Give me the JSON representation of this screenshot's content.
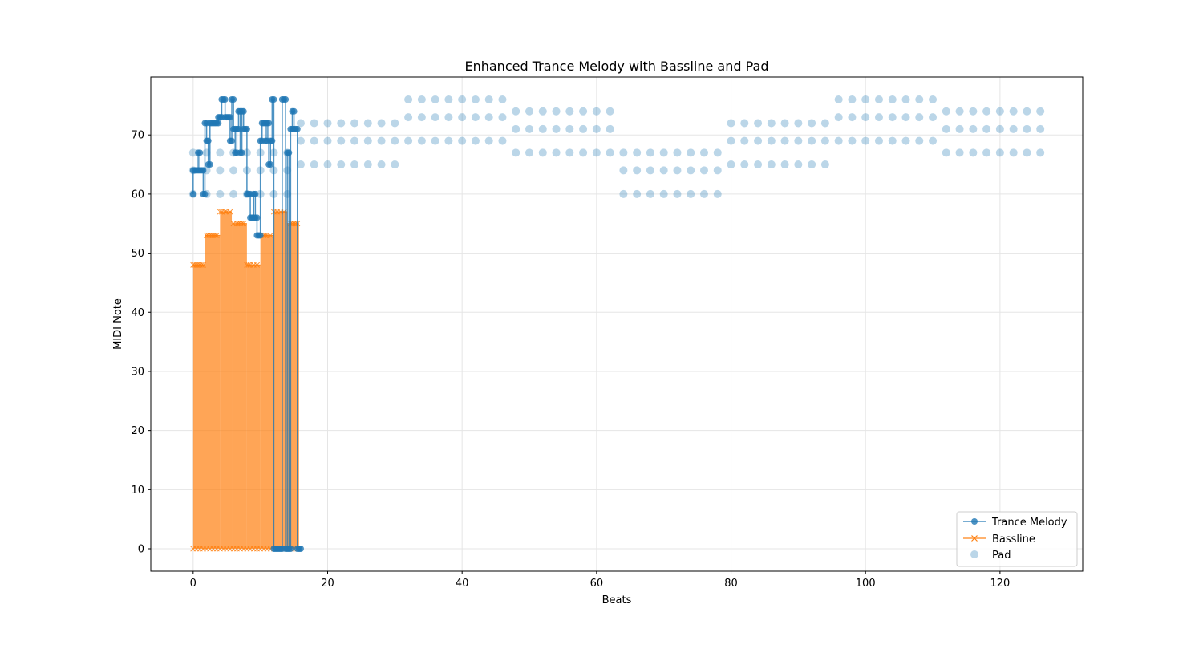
{
  "chart_data": {
    "type": "line",
    "title": "Enhanced Trance Melody with Bassline and Pad",
    "xlabel": "Beats",
    "ylabel": "MIDI Note",
    "xlim": [
      -6.3,
      132.3
    ],
    "ylim": [
      -3.8,
      79.8
    ],
    "x_ticks": [
      0,
      20,
      40,
      60,
      80,
      100,
      120
    ],
    "y_ticks": [
      0,
      10,
      20,
      30,
      40,
      50,
      60,
      70
    ],
    "grid": true,
    "legend_position": "lower right",
    "series": [
      {
        "name": "Trance Melody",
        "kind": "step-line",
        "marker": "circle",
        "color": "#1f77b4",
        "points": [
          [
            0,
            60
          ],
          [
            0,
            64
          ],
          [
            0.25,
            64
          ],
          [
            0.5,
            64
          ],
          [
            0.75,
            64
          ],
          [
            0.75,
            67
          ],
          [
            1,
            67
          ],
          [
            1,
            64
          ],
          [
            1.25,
            64
          ],
          [
            1.5,
            64
          ],
          [
            1.5,
            60
          ],
          [
            1.75,
            60
          ],
          [
            1.75,
            72
          ],
          [
            2,
            72
          ],
          [
            2,
            69
          ],
          [
            2.25,
            69
          ],
          [
            2.25,
            65
          ],
          [
            2.5,
            65
          ],
          [
            2.5,
            72
          ],
          [
            2.75,
            72
          ],
          [
            3,
            72
          ],
          [
            3.25,
            72
          ],
          [
            3.5,
            72
          ],
          [
            3.75,
            72
          ],
          [
            3.75,
            73
          ],
          [
            4,
            73
          ],
          [
            4.25,
            73
          ],
          [
            4.25,
            76
          ],
          [
            4.5,
            76
          ],
          [
            4.75,
            76
          ],
          [
            4.75,
            73
          ],
          [
            5,
            73
          ],
          [
            5.25,
            73
          ],
          [
            5.5,
            73
          ],
          [
            5.5,
            69
          ],
          [
            5.75,
            69
          ],
          [
            5.75,
            76
          ],
          [
            6,
            76
          ],
          [
            6,
            71
          ],
          [
            6.25,
            71
          ],
          [
            6.25,
            67
          ],
          [
            6.5,
            67
          ],
          [
            6.5,
            71
          ],
          [
            6.75,
            71
          ],
          [
            6.75,
            74
          ],
          [
            7,
            74
          ],
          [
            7,
            67
          ],
          [
            7.25,
            67
          ],
          [
            7.25,
            74
          ],
          [
            7.5,
            74
          ],
          [
            7.5,
            71
          ],
          [
            7.75,
            71
          ],
          [
            8,
            71
          ],
          [
            8,
            60
          ],
          [
            8.25,
            60
          ],
          [
            8.5,
            60
          ],
          [
            8.5,
            56
          ],
          [
            8.75,
            56
          ],
          [
            9,
            56
          ],
          [
            9,
            60
          ],
          [
            9.25,
            60
          ],
          [
            9.25,
            56
          ],
          [
            9.5,
            56
          ],
          [
            9.5,
            53
          ],
          [
            9.75,
            53
          ],
          [
            10,
            53
          ],
          [
            10,
            69
          ],
          [
            10.25,
            69
          ],
          [
            10.25,
            72
          ],
          [
            10.5,
            72
          ],
          [
            10.75,
            72
          ],
          [
            10.75,
            69
          ],
          [
            11,
            69
          ],
          [
            11,
            72
          ],
          [
            11.25,
            72
          ],
          [
            11.25,
            65
          ],
          [
            11.5,
            65
          ],
          [
            11.5,
            69
          ],
          [
            11.75,
            69
          ],
          [
            11.75,
            76
          ],
          [
            12,
            76
          ],
          [
            12,
            0
          ],
          [
            12.25,
            0
          ],
          [
            12.5,
            0
          ],
          [
            12.75,
            0
          ],
          [
            13,
            0
          ],
          [
            13.25,
            0
          ],
          [
            13.25,
            76
          ],
          [
            13.5,
            76
          ],
          [
            13.75,
            76
          ],
          [
            13.75,
            0
          ],
          [
            14,
            0
          ],
          [
            14,
            67
          ],
          [
            14.25,
            67
          ],
          [
            14.25,
            0
          ],
          [
            14.5,
            0
          ],
          [
            14.5,
            71
          ],
          [
            14.75,
            71
          ],
          [
            14.75,
            74
          ],
          [
            15,
            74
          ],
          [
            15,
            71
          ],
          [
            15.25,
            71
          ],
          [
            15.5,
            71
          ],
          [
            15.5,
            0
          ],
          [
            15.75,
            0
          ],
          [
            16,
            0
          ]
        ]
      },
      {
        "name": "Bassline",
        "kind": "filled-steps",
        "marker": "x",
        "color": "#ff7f0e",
        "segments": [
          [
            0,
            1.75,
            48
          ],
          [
            1.75,
            4,
            53
          ],
          [
            4,
            5.75,
            57
          ],
          [
            5.75,
            8,
            55
          ],
          [
            8,
            10,
            48
          ],
          [
            10,
            12,
            53
          ],
          [
            12,
            13.25,
            57
          ],
          [
            13.25,
            14,
            57
          ],
          [
            14,
            15.75,
            55
          ]
        ],
        "markers_top": [
          [
            0,
            48
          ],
          [
            0.25,
            48
          ],
          [
            0.5,
            48
          ],
          [
            0.75,
            48
          ],
          [
            1,
            48
          ],
          [
            1.25,
            48
          ],
          [
            1.5,
            48
          ],
          [
            2,
            53
          ],
          [
            2.25,
            53
          ],
          [
            2.5,
            53
          ],
          [
            2.75,
            53
          ],
          [
            3,
            53
          ],
          [
            3.25,
            53
          ],
          [
            3.5,
            53
          ],
          [
            4,
            57
          ],
          [
            4.25,
            57
          ],
          [
            4.75,
            57
          ],
          [
            5,
            57
          ],
          [
            5.5,
            57
          ],
          [
            6,
            55
          ],
          [
            6.5,
            55
          ],
          [
            6.75,
            55
          ],
          [
            7,
            55
          ],
          [
            7.25,
            55
          ],
          [
            7.5,
            55
          ],
          [
            8,
            48
          ],
          [
            8.25,
            48
          ],
          [
            8.5,
            48
          ],
          [
            9,
            48
          ],
          [
            9.5,
            48
          ],
          [
            10,
            53
          ],
          [
            10.5,
            53
          ],
          [
            10.75,
            53
          ],
          [
            11,
            53
          ],
          [
            11.5,
            53
          ],
          [
            12,
            57
          ],
          [
            12.5,
            57
          ],
          [
            13,
            57
          ],
          [
            13.5,
            57
          ],
          [
            14.5,
            55
          ],
          [
            14.75,
            55
          ],
          [
            15,
            55
          ],
          [
            15.25,
            55
          ],
          [
            15.5,
            55
          ]
        ],
        "markers_zero": [
          0,
          0.5,
          1,
          1.5,
          2,
          2.5,
          3,
          3.5,
          4,
          4.5,
          5,
          5.5,
          6,
          6.5,
          7,
          7.5,
          8,
          8.5,
          9,
          9.5,
          10,
          10.5,
          11,
          11.5,
          12,
          12.5,
          13,
          13.5,
          14,
          14.5,
          15,
          15.5
        ]
      },
      {
        "name": "Pad",
        "kind": "scatter",
        "marker": "circle",
        "color": "#1f77b4",
        "alpha": 0.3,
        "chords": [
          {
            "x_start": 0,
            "x_end": 14,
            "notes": [
              60,
              64,
              67
            ]
          },
          {
            "x_start": 16,
            "x_end": 30,
            "notes": [
              65,
              69,
              72
            ]
          },
          {
            "x_start": 32,
            "x_end": 46,
            "notes": [
              69,
              73,
              76
            ]
          },
          {
            "x_start": 48,
            "x_end": 62,
            "notes": [
              67,
              71,
              74
            ]
          },
          {
            "x_start": 64,
            "x_end": 78,
            "notes": [
              60,
              64,
              67
            ]
          },
          {
            "x_start": 80,
            "x_end": 94,
            "notes": [
              65,
              69,
              72
            ]
          },
          {
            "x_start": 96,
            "x_end": 110,
            "notes": [
              69,
              73,
              76
            ]
          },
          {
            "x_start": 112,
            "x_end": 126,
            "notes": [
              67,
              71,
              74
            ]
          }
        ],
        "step": 2
      }
    ]
  },
  "colors": {
    "melody": "#1f77b4",
    "bass": "#ff7f0e",
    "pad": "#1f77b4",
    "grid": "#e5e5e5",
    "axes": "#000000"
  }
}
